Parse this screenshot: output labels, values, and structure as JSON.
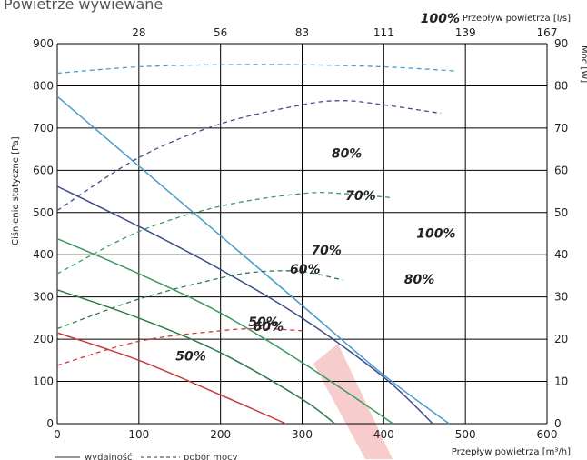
{
  "title": "Powietrze wywiewane",
  "chart_data": {
    "type": "line",
    "title": "Powietrze wywiewane",
    "xlabel": "Przepływ powietrza [m³/h]",
    "x2label": "Przepływ powietrza [l/s]",
    "ylabel": "Ciśnienie statyczne [Pa]",
    "y2label": "Moc [W]",
    "xlim": [
      0,
      600
    ],
    "ylim": [
      0,
      900
    ],
    "y2lim": [
      0,
      90
    ],
    "x_ticks": [
      "0",
      "100",
      "200",
      "300",
      "400",
      "500",
      "600"
    ],
    "y_ticks": [
      "0",
      "100",
      "200",
      "300",
      "400",
      "500",
      "600",
      "700",
      "800",
      "900"
    ],
    "x2_ticks": [
      "28",
      "56",
      "83",
      "111",
      "139",
      "167"
    ],
    "y2_ticks": [
      "0",
      "10",
      "20",
      "30",
      "40",
      "50",
      "60",
      "70",
      "80",
      "90"
    ],
    "grid": true,
    "legend": {
      "solid": "wydajność",
      "dashed": "pobór mocy"
    },
    "pressure_series": [
      {
        "name": "100%",
        "color": "#4a9ccc",
        "x": [
          0,
          100,
          200,
          300,
          400,
          480
        ],
        "y": [
          775,
          610,
          445,
          280,
          115,
          0
        ]
      },
      {
        "name": "80%",
        "color": "#3c4d8a",
        "x": [
          0,
          100,
          200,
          300,
          400,
          460
        ],
        "y": [
          562,
          467,
          365,
          250,
          110,
          0
        ]
      },
      {
        "name": "70%",
        "color": "#3a9a60",
        "x": [
          0,
          100,
          200,
          300,
          400,
          410
        ],
        "y": [
          438,
          355,
          262,
          145,
          15,
          0
        ]
      },
      {
        "name": "60%",
        "color": "#2e7a4a",
        "x": [
          0,
          100,
          200,
          300,
          340
        ],
        "y": [
          317,
          250,
          168,
          58,
          0
        ]
      },
      {
        "name": "50%",
        "color": "#c83a3a",
        "x": [
          0,
          100,
          200,
          280
        ],
        "y": [
          215,
          150,
          68,
          0
        ]
      }
    ],
    "power_series": [
      {
        "name": "100%",
        "color": "#4a9ccc",
        "x": [
          0,
          100,
          200,
          300,
          400,
          490
        ],
        "y": [
          83,
          84.5,
          85,
          85,
          84.5,
          83.5
        ]
      },
      {
        "name": "80%",
        "color": "#3c4d8a",
        "x": [
          0,
          100,
          200,
          300,
          350,
          400,
          470
        ],
        "y": [
          50.5,
          63,
          71,
          75.5,
          76.5,
          75.5,
          73.5
        ]
      },
      {
        "name": "70%",
        "color": "#3a9a60",
        "x": [
          0,
          100,
          200,
          300,
          350,
          410
        ],
        "y": [
          35.5,
          45.5,
          51.5,
          54.5,
          54.5,
          53.5
        ]
      },
      {
        "name": "60%",
        "color": "#2e7a4a",
        "x": [
          0,
          100,
          200,
          250,
          300,
          350
        ],
        "y": [
          22.5,
          29.5,
          34.5,
          36,
          36,
          34
        ]
      },
      {
        "name": "50%",
        "color": "#c83a3a",
        "x": [
          0,
          100,
          200,
          250,
          300
        ],
        "y": [
          13.8,
          19.5,
          22,
          22.5,
          22
        ]
      }
    ],
    "annotations": [
      {
        "text": "100%",
        "x": 440,
        "y": 440
      },
      {
        "text": "80%",
        "x": 425,
        "y": 332
      },
      {
        "text": "70%",
        "x": 353,
        "y": 530
      },
      {
        "text": "60%",
        "x": 285,
        "y": 355
      },
      {
        "text": "50%",
        "x": 234,
        "y": 230
      },
      {
        "text": "100%",
        "x": 445,
        "y": 95
      },
      {
        "text": "80%",
        "x": 336,
        "y": 63
      },
      {
        "text": "70%",
        "x": 311,
        "y": 40
      },
      {
        "text": "60%",
        "x": 240,
        "y": 22
      },
      {
        "text": "50%",
        "x": 145,
        "y": 15
      }
    ]
  }
}
